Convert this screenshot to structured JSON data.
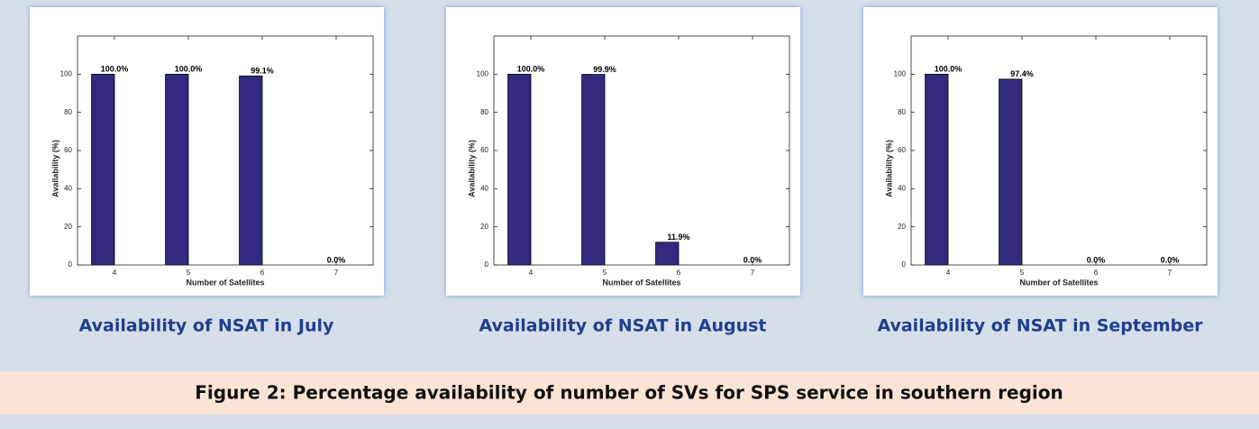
{
  "chart_data": [
    {
      "type": "bar",
      "caption": "Availability of NSAT in July",
      "xlabel": "Number of Satellites",
      "ylabel": "Availability (%)",
      "categories": [
        "4",
        "5",
        "6",
        "7"
      ],
      "values": [
        100,
        100,
        99.1,
        0
      ],
      "value_labels": [
        "100.0%",
        "100.0%",
        "99.1%",
        "0.0%"
      ],
      "color": "#312a7f",
      "ylim": [
        0,
        120
      ],
      "yticks": [
        0,
        20,
        40,
        60,
        80,
        100
      ]
    },
    {
      "type": "bar",
      "caption": "Availability of NSAT in August",
      "xlabel": "Number of Satellites",
      "ylabel": "Availability (%)",
      "categories": [
        "4",
        "5",
        "6",
        "7"
      ],
      "values": [
        100,
        99.9,
        11.9,
        0
      ],
      "value_labels": [
        "100.0%",
        "99.9%",
        "11.9%",
        "0.0%"
      ],
      "color": "#312a7f",
      "ylim": [
        0,
        120
      ],
      "yticks": [
        0,
        20,
        40,
        60,
        80,
        100
      ]
    },
    {
      "type": "bar",
      "caption": "Availability of NSAT in September",
      "xlabel": "Number of Satellites",
      "ylabel": "Availability (%)",
      "categories": [
        "4",
        "5",
        "6",
        "7"
      ],
      "values": [
        100,
        97.4,
        0,
        0
      ],
      "value_labels": [
        "100.0%",
        "97.4%",
        "0.0%",
        "0.0%"
      ],
      "color": "#312a7f",
      "ylim": [
        0,
        120
      ],
      "yticks": [
        0,
        20,
        40,
        60,
        80,
        100
      ]
    }
  ],
  "figure_caption": "Figure 2: Percentage availability of number of SVs for SPS service in southern region"
}
